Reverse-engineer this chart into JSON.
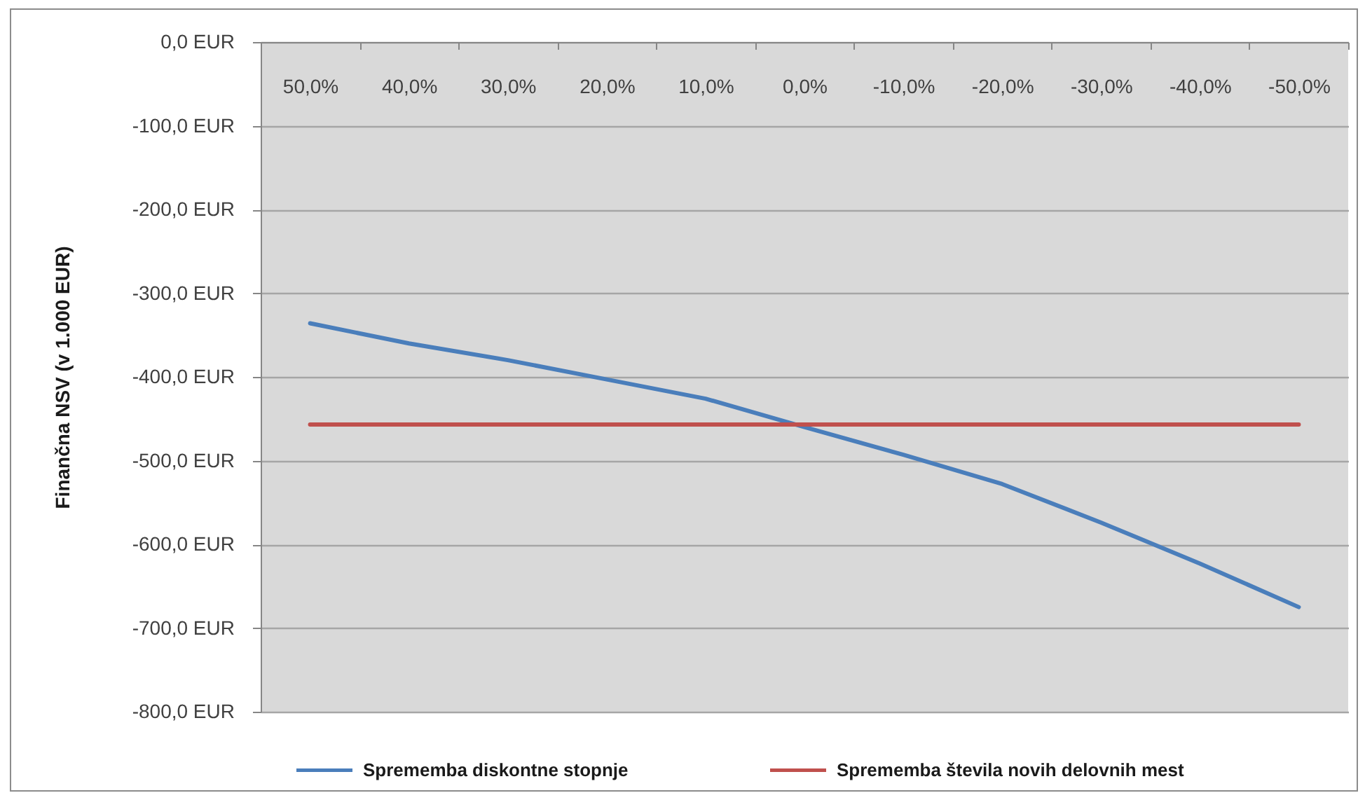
{
  "chart_data": {
    "type": "line",
    "ylabel": "Finančna NSV (v 1.000 EUR)",
    "categories": [
      "50,0%",
      "40,0%",
      "30,0%",
      "20,0%",
      "10,0%",
      "0,0%",
      "-10,0%",
      "-20,0%",
      "-30,0%",
      "-40,0%",
      "-50,0%"
    ],
    "series": [
      {
        "name": "Sprememba diskontne stopnje",
        "color": "#4a7ebb",
        "values": [
          -336,
          -360,
          -380,
          -403,
          -426,
          -460,
          -493,
          -528,
          -574,
          -623,
          -675
        ]
      },
      {
        "name": "Sprememba števila novih delovnih mest",
        "color": "#c0504d",
        "values": [
          -457,
          -457,
          -457,
          -457,
          -457,
          -457,
          -457,
          -457,
          -457,
          -457,
          -457
        ]
      }
    ],
    "ylim": [
      -800,
      0
    ],
    "yticks": [
      {
        "value": 0,
        "label": "0,0 EUR"
      },
      {
        "value": -100,
        "label": "-100,0 EUR"
      },
      {
        "value": -200,
        "label": "-200,0 EUR"
      },
      {
        "value": -300,
        "label": "-300,0 EUR"
      },
      {
        "value": -400,
        "label": "-400,0 EUR"
      },
      {
        "value": -500,
        "label": "-500,0 EUR"
      },
      {
        "value": -600,
        "label": "-600,0 EUR"
      },
      {
        "value": -700,
        "label": "-700,0 EUR"
      },
      {
        "value": -800,
        "label": "-800,0 EUR"
      }
    ],
    "grid": "y",
    "legend": "bottom",
    "line_style": "solid"
  }
}
